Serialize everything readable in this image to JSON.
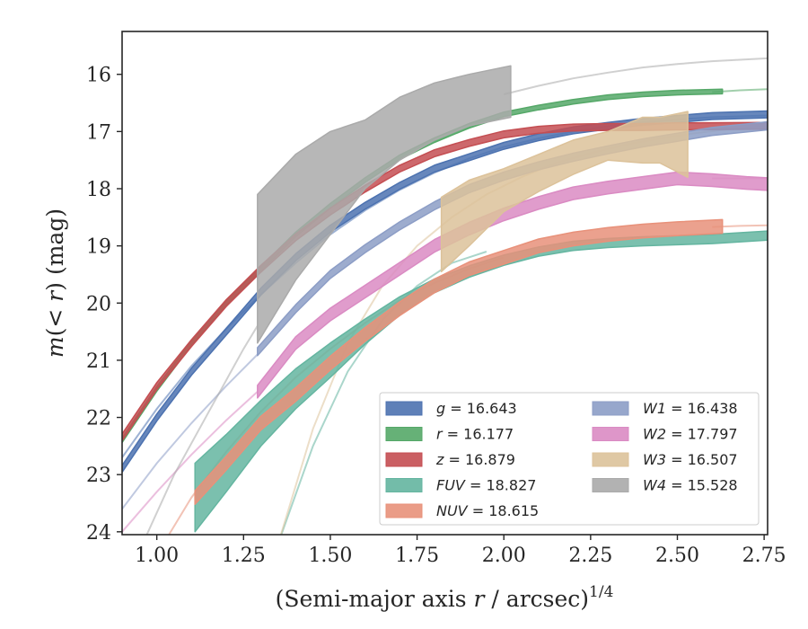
{
  "chart_data": {
    "type": "line",
    "title": "",
    "xlabel_text": "(Semi-major axis ",
    "xlabel_var": "r",
    "xlabel_unit": " / arcsec)",
    "xlabel_sup": "1/4",
    "ylabel_pre": "m",
    "ylabel_mid": "(< ",
    "ylabel_var": "r",
    "ylabel_post": ") (mag)",
    "xlim": [
      0.9,
      2.76
    ],
    "ylim": [
      24.05,
      15.25
    ],
    "y_inverted": true,
    "grid": false,
    "legend_placement": "lower-right",
    "legend_columns": 2,
    "x_ticks": [
      {
        "value": 1.0,
        "label": "1.00"
      },
      {
        "value": 1.25,
        "label": "1.25"
      },
      {
        "value": 1.5,
        "label": "1.50"
      },
      {
        "value": 1.75,
        "label": "1.75"
      },
      {
        "value": 2.0,
        "label": "2.00"
      },
      {
        "value": 2.25,
        "label": "2.25"
      },
      {
        "value": 2.5,
        "label": "2.50"
      },
      {
        "value": 2.75,
        "label": "2.75"
      }
    ],
    "y_ticks": [
      {
        "value": 16,
        "label": "16"
      },
      {
        "value": 17,
        "label": "17"
      },
      {
        "value": 18,
        "label": "18"
      },
      {
        "value": 19,
        "label": "19"
      },
      {
        "value": 20,
        "label": "20"
      },
      {
        "value": 21,
        "label": "21"
      },
      {
        "value": 22,
        "label": "22"
      },
      {
        "value": 23,
        "label": "23"
      },
      {
        "value": 24,
        "label": "24"
      }
    ],
    "series": [
      {
        "name": "g",
        "value_label": "16.643",
        "color": "#4c72b0",
        "x": [
          0.9,
          1.0,
          1.1,
          1.2,
          1.3,
          1.4,
          1.5,
          1.6,
          1.7,
          1.8,
          1.9,
          2.0,
          2.1,
          2.2,
          2.3,
          2.4,
          2.5,
          2.6,
          2.76
        ],
        "y": [
          22.9,
          22.0,
          21.2,
          20.5,
          19.8,
          19.2,
          18.7,
          18.3,
          17.95,
          17.65,
          17.45,
          17.25,
          17.1,
          16.98,
          16.9,
          16.83,
          16.78,
          16.73,
          16.7
        ],
        "band": 0.06
      },
      {
        "name": "r",
        "value_label": "16.177",
        "color": "#55a868",
        "x": [
          0.9,
          1.0,
          1.1,
          1.2,
          1.3,
          1.4,
          1.5,
          1.6,
          1.7,
          1.8,
          1.9,
          2.0,
          2.1,
          2.2,
          2.3,
          2.4,
          2.5,
          2.63
        ],
        "y": [
          22.4,
          21.5,
          20.7,
          20.0,
          19.4,
          18.8,
          18.3,
          17.85,
          17.45,
          17.15,
          16.9,
          16.7,
          16.58,
          16.48,
          16.4,
          16.35,
          16.32,
          16.3
        ],
        "band": 0.04
      },
      {
        "name": "z",
        "value_label": "16.879",
        "color": "#c44e52",
        "x": [
          0.9,
          1.0,
          1.1,
          1.2,
          1.3,
          1.4,
          1.5,
          1.6,
          1.7,
          1.8,
          1.9,
          2.0,
          2.1,
          2.2,
          2.3,
          2.4,
          2.5,
          2.76
        ],
        "y": [
          22.35,
          21.45,
          20.7,
          20.0,
          19.4,
          18.85,
          18.4,
          18.0,
          17.65,
          17.38,
          17.2,
          17.05,
          16.97,
          16.93,
          16.92,
          16.92,
          16.91,
          16.9
        ],
        "band": 0.06
      },
      {
        "name": "FUV",
        "value_label": "18.827",
        "color": "#64b5a0",
        "x": [
          1.11,
          1.2,
          1.3,
          1.4,
          1.5,
          1.6,
          1.7,
          1.8,
          1.9,
          2.0,
          2.1,
          2.2,
          2.3,
          2.4,
          2.5,
          2.6,
          2.76
        ],
        "y": [
          23.4,
          22.8,
          22.1,
          21.5,
          21.0,
          20.5,
          20.05,
          19.7,
          19.45,
          19.25,
          19.1,
          19.0,
          18.95,
          18.92,
          18.9,
          18.88,
          18.82
        ],
        "band_lo": [
          0.6,
          0.5,
          0.4,
          0.35,
          0.3,
          0.22,
          0.16,
          0.12,
          0.1,
          0.09,
          0.08,
          0.08,
          0.08,
          0.08,
          0.08,
          0.08,
          0.08
        ],
        "band_hi": [
          0.6,
          0.5,
          0.4,
          0.35,
          0.3,
          0.22,
          0.16,
          0.12,
          0.1,
          0.09,
          0.08,
          0.08,
          0.08,
          0.08,
          0.08,
          0.08,
          0.08
        ]
      },
      {
        "name": "NUV",
        "value_label": "18.615",
        "color": "#e8917a",
        "x": [
          1.11,
          1.2,
          1.3,
          1.4,
          1.5,
          1.6,
          1.7,
          1.8,
          1.9,
          2.0,
          2.1,
          2.2,
          2.3,
          2.4,
          2.5,
          2.63
        ],
        "y": [
          23.4,
          22.8,
          22.1,
          21.6,
          21.05,
          20.55,
          20.1,
          19.7,
          19.4,
          19.2,
          19.0,
          18.88,
          18.8,
          18.74,
          18.7,
          18.66
        ],
        "band": 0.12
      },
      {
        "name": "W1",
        "value_label": "16.438",
        "color": "#8c9dc6",
        "x": [
          1.29,
          1.4,
          1.5,
          1.6,
          1.7,
          1.8,
          1.9,
          2.0,
          2.1,
          2.2,
          2.3,
          2.4,
          2.5,
          2.6,
          2.76
        ],
        "y": [
          20.85,
          20.1,
          19.5,
          19.05,
          18.65,
          18.3,
          18.0,
          17.78,
          17.6,
          17.45,
          17.32,
          17.2,
          17.1,
          17.0,
          16.9
        ],
        "band": 0.07
      },
      {
        "name": "W2",
        "value_label": "17.797",
        "color": "#da8bc3",
        "x": [
          1.29,
          1.4,
          1.5,
          1.6,
          1.7,
          1.8,
          1.9,
          2.0,
          2.1,
          2.2,
          2.3,
          2.4,
          2.5,
          2.6,
          2.7,
          2.76
        ],
        "y": [
          21.55,
          20.7,
          20.2,
          19.8,
          19.4,
          19.0,
          18.7,
          18.45,
          18.25,
          18.08,
          17.98,
          17.9,
          17.82,
          17.85,
          17.9,
          17.92
        ],
        "band": 0.11
      },
      {
        "name": "W3",
        "value_label": "16.507",
        "color": "#dcc29a",
        "x": [
          1.82,
          1.9,
          2.0,
          2.1,
          2.2,
          2.3,
          2.4,
          2.45,
          2.53
        ],
        "y": [
          18.85,
          18.45,
          18.05,
          17.75,
          17.5,
          17.3,
          17.35,
          17.3,
          17.3
        ],
        "band_lo": [
          0.6,
          0.55,
          0.35,
          0.3,
          0.25,
          0.2,
          0.2,
          0.25,
          0.5
        ],
        "band_hi": [
          0.7,
          0.6,
          0.4,
          0.35,
          0.35,
          0.3,
          0.6,
          0.55,
          0.65
        ]
      },
      {
        "name": "W4",
        "value_label": "15.528",
        "color": "#aaaaaa",
        "x": [
          1.29,
          1.4,
          1.5,
          1.6,
          1.7,
          1.8,
          1.9,
          2.02
        ],
        "y": [
          19.4,
          18.5,
          17.9,
          17.4,
          16.95,
          16.65,
          16.45,
          16.3
        ],
        "band_lo": [
          1.3,
          1.1,
          0.9,
          0.6,
          0.55,
          0.5,
          0.45,
          0.45
        ],
        "band_hi": [
          1.3,
          1.1,
          0.9,
          0.6,
          0.55,
          0.5,
          0.45,
          0.45
        ]
      }
    ],
    "model_curves": [
      {
        "series": "g",
        "color": "#4c72b0",
        "x": [
          0.9,
          1.0,
          1.1,
          1.2,
          1.3,
          1.4,
          1.5,
          1.6,
          1.7,
          1.8,
          1.9,
          2.0,
          2.1,
          2.2,
          2.3,
          2.4,
          2.5,
          2.6,
          2.76
        ],
        "y": [
          22.7,
          21.85,
          21.1,
          20.45,
          19.85,
          19.3,
          18.8,
          18.38,
          18.02,
          17.72,
          17.47,
          17.27,
          17.12,
          17.0,
          16.91,
          16.84,
          16.79,
          16.75,
          16.72
        ]
      },
      {
        "series": "r",
        "color": "#55a868",
        "x": [
          2.6,
          2.68,
          2.76
        ],
        "y": [
          16.31,
          16.28,
          16.26
        ]
      },
      {
        "series": "FUV",
        "color": "#64b5a0",
        "x": [
          1.35,
          1.45,
          1.55,
          1.65,
          1.75,
          1.85,
          1.95
        ],
        "y": [
          24.2,
          22.5,
          21.2,
          20.3,
          19.7,
          19.3,
          19.1
        ]
      },
      {
        "series": "NUV",
        "color": "#e8917a",
        "x": [
          1.0,
          1.1,
          1.2,
          1.3,
          1.4,
          1.5,
          1.6,
          1.7,
          1.8,
          1.9,
          2.0
        ],
        "y": [
          24.4,
          23.4,
          22.6,
          21.9,
          21.3,
          20.8,
          20.35,
          19.95,
          19.65,
          19.4,
          19.2
        ]
      },
      {
        "series": "NUV",
        "color": "#e8917a",
        "x": [
          2.6,
          2.68,
          2.76
        ],
        "y": [
          18.67,
          18.65,
          18.64
        ]
      },
      {
        "series": "W1",
        "color": "#8c9dc6",
        "x": [
          0.9,
          1.0,
          1.1,
          1.2,
          1.29
        ],
        "y": [
          23.6,
          22.8,
          22.1,
          21.45,
          20.9
        ]
      },
      {
        "series": "W2",
        "color": "#da8bc3",
        "x": [
          0.9,
          1.0,
          1.1,
          1.2,
          1.29
        ],
        "y": [
          24.0,
          23.3,
          22.65,
          22.05,
          21.55
        ]
      },
      {
        "series": "W2",
        "color": "#da8bc3",
        "x": [
          2.6,
          2.68,
          2.76
        ],
        "y": [
          17.82,
          17.82,
          17.82
        ]
      },
      {
        "series": "W3",
        "color": "#dcc29a",
        "x": [
          1.35,
          1.45,
          1.55,
          1.65,
          1.75,
          1.85,
          1.95,
          2.05,
          2.15,
          2.25,
          2.35,
          2.45,
          2.55,
          2.65,
          2.76
        ],
        "y": [
          24.2,
          22.2,
          20.7,
          19.7,
          19.0,
          18.5,
          18.1,
          17.8,
          17.55,
          17.38,
          17.23,
          17.12,
          17.03,
          16.96,
          16.9
        ]
      },
      {
        "series": "W4",
        "color": "#aaaaaa",
        "x": [
          0.96,
          1.05,
          1.15,
          1.25,
          1.29
        ],
        "y": [
          24.2,
          23.0,
          21.9,
          20.8,
          20.4
        ]
      },
      {
        "series": "W4",
        "color": "#aaaaaa",
        "x": [
          2.0,
          2.1,
          2.2,
          2.3,
          2.4,
          2.5,
          2.6,
          2.76
        ],
        "y": [
          16.35,
          16.2,
          16.07,
          15.97,
          15.88,
          15.82,
          15.77,
          15.72
        ]
      }
    ]
  }
}
